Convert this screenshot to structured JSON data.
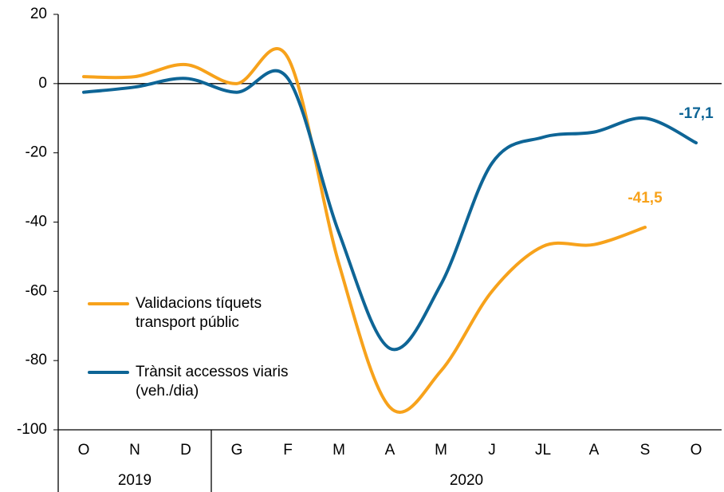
{
  "chart_data": {
    "type": "line",
    "categories": [
      "O",
      "N",
      "D",
      "G",
      "F",
      "M",
      "A",
      "M",
      "J",
      "JL",
      "A",
      "S",
      "O"
    ],
    "groups": [
      {
        "label": "2019",
        "count": 3
      },
      {
        "label": "2020",
        "count": 10
      }
    ],
    "series": [
      {
        "name": "Validacions tíquets transport públic",
        "color": "#f7a21b",
        "values": [
          2,
          2,
          5.5,
          0,
          7.5,
          -52,
          -93.5,
          -83,
          -60,
          -47,
          -46.5,
          -41.5,
          null
        ],
        "value_labels": [
          null,
          null,
          null,
          null,
          null,
          null,
          null,
          null,
          null,
          null,
          null,
          "-41,5",
          null
        ]
      },
      {
        "name": "Trànsit accessos viaris (veh./dia)",
        "color": "#0e6596",
        "values": [
          -2.5,
          -1,
          1.5,
          -2.5,
          1.5,
          -43,
          -76.5,
          -58,
          -23,
          -15.5,
          -14,
          -10,
          -17.1
        ],
        "value_labels": [
          null,
          null,
          null,
          null,
          null,
          null,
          null,
          null,
          null,
          null,
          null,
          null,
          "-17,1"
        ]
      }
    ],
    "ylim": [
      -100,
      20
    ],
    "yticks": [
      -100,
      -80,
      -60,
      -40,
      -20,
      0,
      20
    ],
    "grid": false,
    "legend": "lower left"
  }
}
